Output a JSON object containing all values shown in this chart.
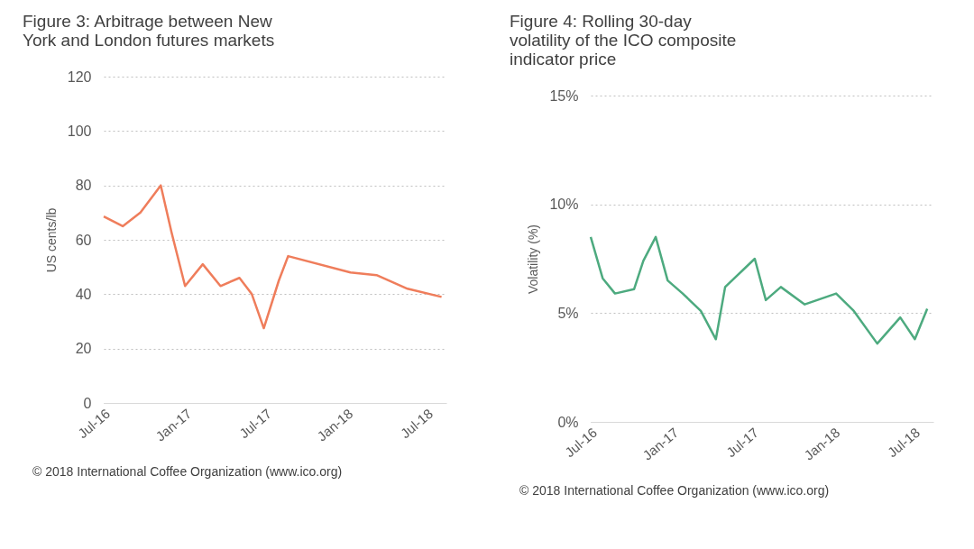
{
  "chart_data": [
    {
      "type": "line",
      "title": "Figure 3:  Arbitrage between New York and London futures markets",
      "ylabel": "US cents/lb",
      "annotations": [
        "© 2018 International Coffee Organization (www.ico.org)"
      ],
      "x": [
        "2016-07-01",
        "2016-08-13",
        "2016-09-22",
        "2016-11-07",
        "2016-12-01",
        "2017-01-01",
        "2017-02-10",
        "2017-03-22",
        "2017-05-04",
        "2017-06-01",
        "2017-06-28",
        "2017-08-01",
        "2017-08-22",
        "2018-01-10",
        "2018-03-10",
        "2018-05-19",
        "2018-08-04"
      ],
      "series": [
        {
          "color": "#ef7d5b",
          "values": [
            68.6,
            65,
            70,
            80,
            63,
            43,
            51,
            43,
            46,
            40,
            27.5,
            45,
            54,
            48,
            47,
            42,
            39
          ]
        }
      ],
      "xlim": [
        "2016-07-01",
        "2018-08-15"
      ],
      "xticks": [
        {
          "value": "2016-07-01",
          "label": "Jul-16"
        },
        {
          "value": "2017-01-01",
          "label": "Jan-17"
        },
        {
          "value": "2017-07-01",
          "label": "Jul-17"
        },
        {
          "value": "2018-01-01",
          "label": "Jan-18"
        },
        {
          "value": "2018-07-01",
          "label": "Jul-18"
        }
      ],
      "ylim": [
        0,
        120
      ],
      "yticks": [
        0,
        20,
        40,
        60,
        80,
        100,
        120
      ],
      "grid": "y"
    },
    {
      "type": "line",
      "title": "Figure 4:  Rolling 30-day volatility of the ICO composite indicator price",
      "ylabel": "Volatility (%)",
      "annotations": [
        "© 2018 International Coffee Organization (www.ico.org)"
      ],
      "x": [
        "2016-07-01",
        "2016-07-28",
        "2016-08-25",
        "2016-10-07",
        "2016-10-28",
        "2016-11-25",
        "2016-12-22",
        "2017-01-25",
        "2017-03-07",
        "2017-04-10",
        "2017-05-01",
        "2017-07-07",
        "2017-08-01",
        "2017-09-04",
        "2017-10-28",
        "2018-01-07",
        "2018-02-16",
        "2018-04-10",
        "2018-06-01",
        "2018-07-04",
        "2018-08-01"
      ],
      "series": [
        {
          "color": "#4daa7f",
          "values": [
            8.5,
            6.6,
            5.9,
            6.1,
            7.4,
            8.5,
            6.5,
            5.9,
            5.1,
            3.8,
            6.2,
            7.5,
            5.6,
            6.2,
            5.4,
            5.9,
            5.1,
            3.6,
            4.8,
            3.8,
            5.2
          ]
        }
      ],
      "xlim": [
        "2016-07-01",
        "2018-08-15"
      ],
      "xticks": [
        {
          "value": "2016-07-01",
          "label": "Jul-16"
        },
        {
          "value": "2017-01-01",
          "label": "Jan-17"
        },
        {
          "value": "2017-07-01",
          "label": "Jul-17"
        },
        {
          "value": "2018-01-01",
          "label": "Jan-18"
        },
        {
          "value": "2018-07-01",
          "label": "Jul-18"
        }
      ],
      "ylim": [
        0,
        15
      ],
      "yticks": [
        {
          "value": 0,
          "label": "0%"
        },
        {
          "value": 5,
          "label": "5%"
        },
        {
          "value": 10,
          "label": "10%"
        },
        {
          "value": 15,
          "label": "15%"
        }
      ],
      "grid": "y"
    }
  ]
}
